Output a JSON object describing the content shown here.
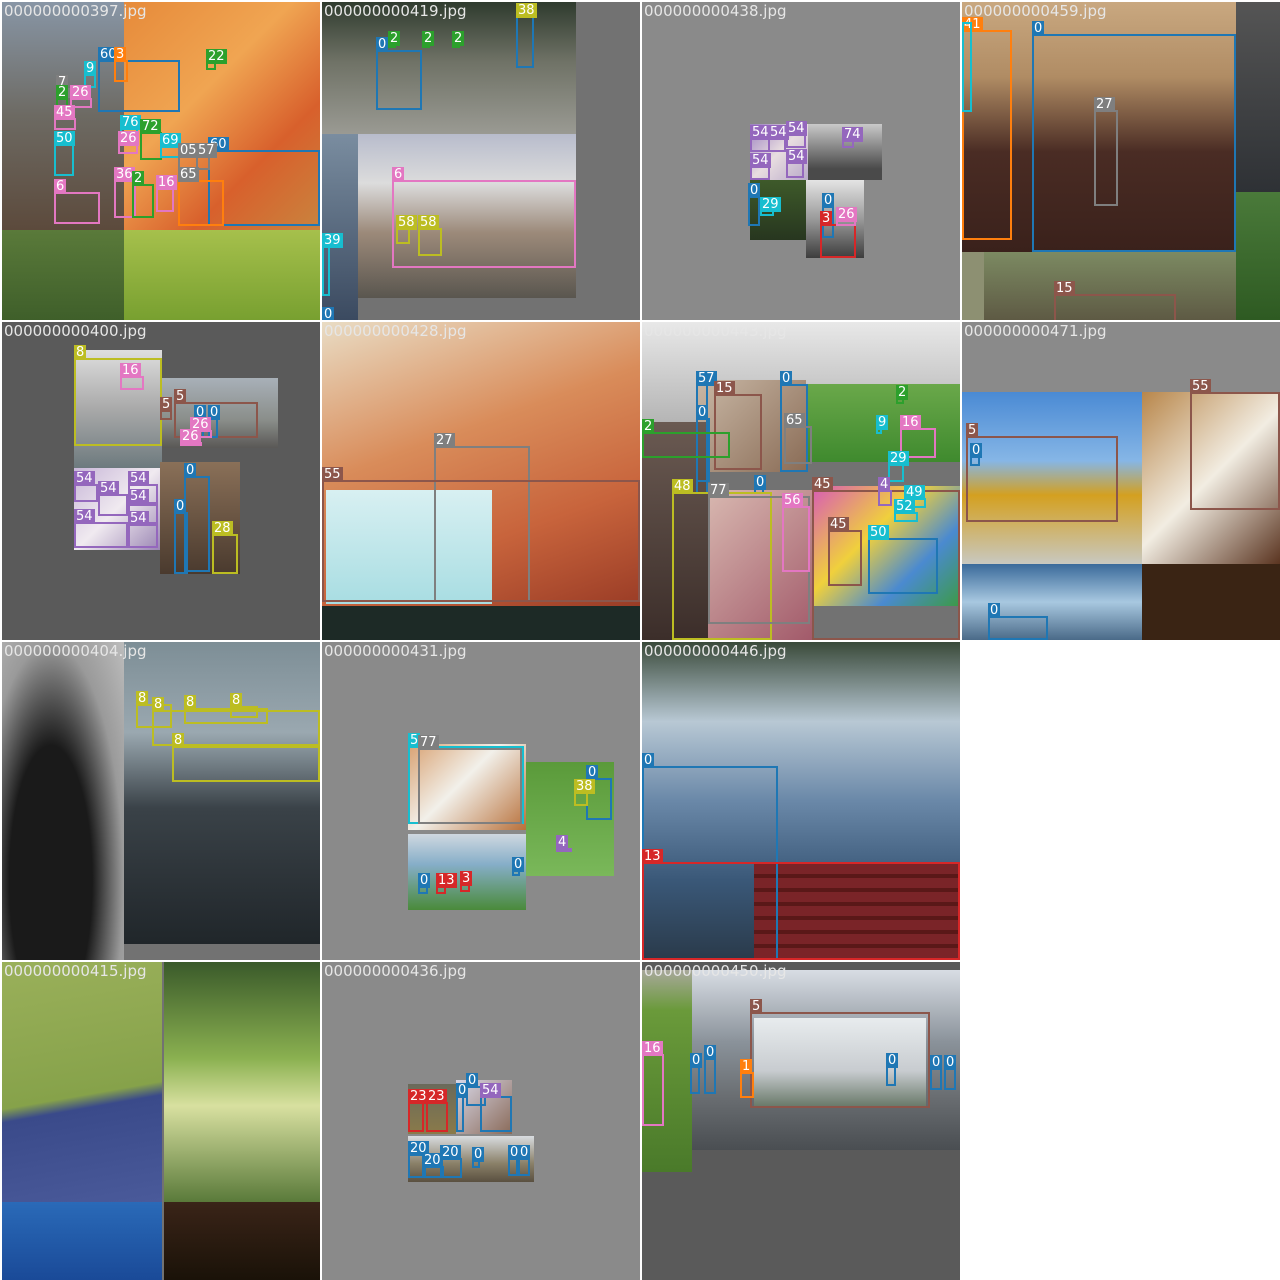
{
  "mosaic": {
    "tiles": [
      {
        "title": "000000000397.jpg"
      },
      {
        "title": "000000000419.jpg"
      },
      {
        "title": "000000000438.jpg"
      },
      {
        "title": "000000000459.jpg"
      },
      {
        "title": "000000000400.jpg"
      },
      {
        "title": "000000000428.jpg"
      },
      {
        "title": "000000000443.jpg"
      },
      {
        "title": "000000000471.jpg"
      },
      {
        "title": "000000000404.jpg"
      },
      {
        "title": "000000000431.jpg"
      },
      {
        "title": "000000000446.jpg"
      },
      {
        "title": "000000000415.jpg"
      },
      {
        "title": "000000000436.jpg"
      },
      {
        "title": "000000000450.jpg"
      }
    ]
  },
  "class_colors": {
    "0": "#1f77b4",
    "1": "#ff7f0e",
    "2": "#2ca02c",
    "3": "#d62728",
    "4": "#9467bd",
    "5": "#8c564b",
    "6": "#e377c2",
    "7": "#7f7f7f",
    "8": "#bcbd22",
    "9": "#17becf"
  },
  "labels": {
    "t0": [
      "60",
      "3",
      "9",
      "22",
      "7",
      "2",
      "26",
      "45",
      "76",
      "26",
      "72",
      "69",
      "60",
      "50",
      "05",
      "57",
      "65",
      "36",
      "2",
      "16",
      "6"
    ],
    "t1": [
      "0",
      "2",
      "2",
      "2",
      "38",
      "6",
      "58",
      "58",
      "39",
      "0"
    ],
    "t2": [
      "54",
      "54",
      "54",
      "54",
      "54",
      "74",
      "0",
      "29",
      "0",
      "3",
      "26"
    ],
    "t3": [
      "41",
      "0",
      "27",
      "15"
    ],
    "t4": [
      "8",
      "16",
      "5",
      "0",
      "0",
      "26",
      "26",
      "5",
      "54",
      "54",
      "54",
      "54",
      "54",
      "54",
      "0",
      "0",
      "28"
    ],
    "t5": [
      "27",
      "55"
    ],
    "t6": [
      "57",
      "15",
      "0",
      "0",
      "2",
      "65",
      "2",
      "9",
      "16",
      "29",
      "0",
      "45",
      "48",
      "77",
      "56",
      "4",
      "49",
      "52",
      "45",
      "50"
    ],
    "t7": [
      "55",
      "5",
      "0",
      "0"
    ],
    "t8": [
      "8",
      "8",
      "8",
      "8",
      "8"
    ],
    "t9": [
      "5",
      "77",
      "0",
      "38",
      "4",
      "0",
      "0",
      "13",
      "3"
    ],
    "t10": [
      "0",
      "13"
    ],
    "t12": [
      "23",
      "23",
      "0",
      "0",
      "54",
      "20",
      "20",
      "20",
      "0",
      "0",
      "0"
    ],
    "t13": [
      "5",
      "16",
      "0",
      "0",
      "1",
      "0",
      "0",
      "0"
    ]
  }
}
